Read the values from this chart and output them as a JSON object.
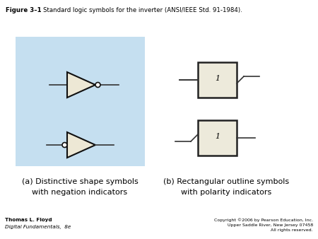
{
  "title_bold": "Figure 3–1",
  "title_normal": "    Standard logic symbols for the inverter (ANSI/IEEE Std. 91-1984).",
  "label_a": "(a) Distinctive shape symbols\nwith negation indicators",
  "label_b": "(b) Rectangular outline symbols\nwith polarity indicators",
  "author_line1": "Thomas L. Floyd",
  "author_line2": "Digital Fundamentals,  8e",
  "copyright": "Copyright ©2006 by Pearson Education, Inc.\nUpper Saddle River, New Jersey 07458\nAll rights reserved.",
  "bg_color": "#ffffff",
  "box_color": "#c5dff0",
  "rect_fill": "#edeadb",
  "rect_edge": "#222222",
  "tri_fill": "#ede8d5"
}
